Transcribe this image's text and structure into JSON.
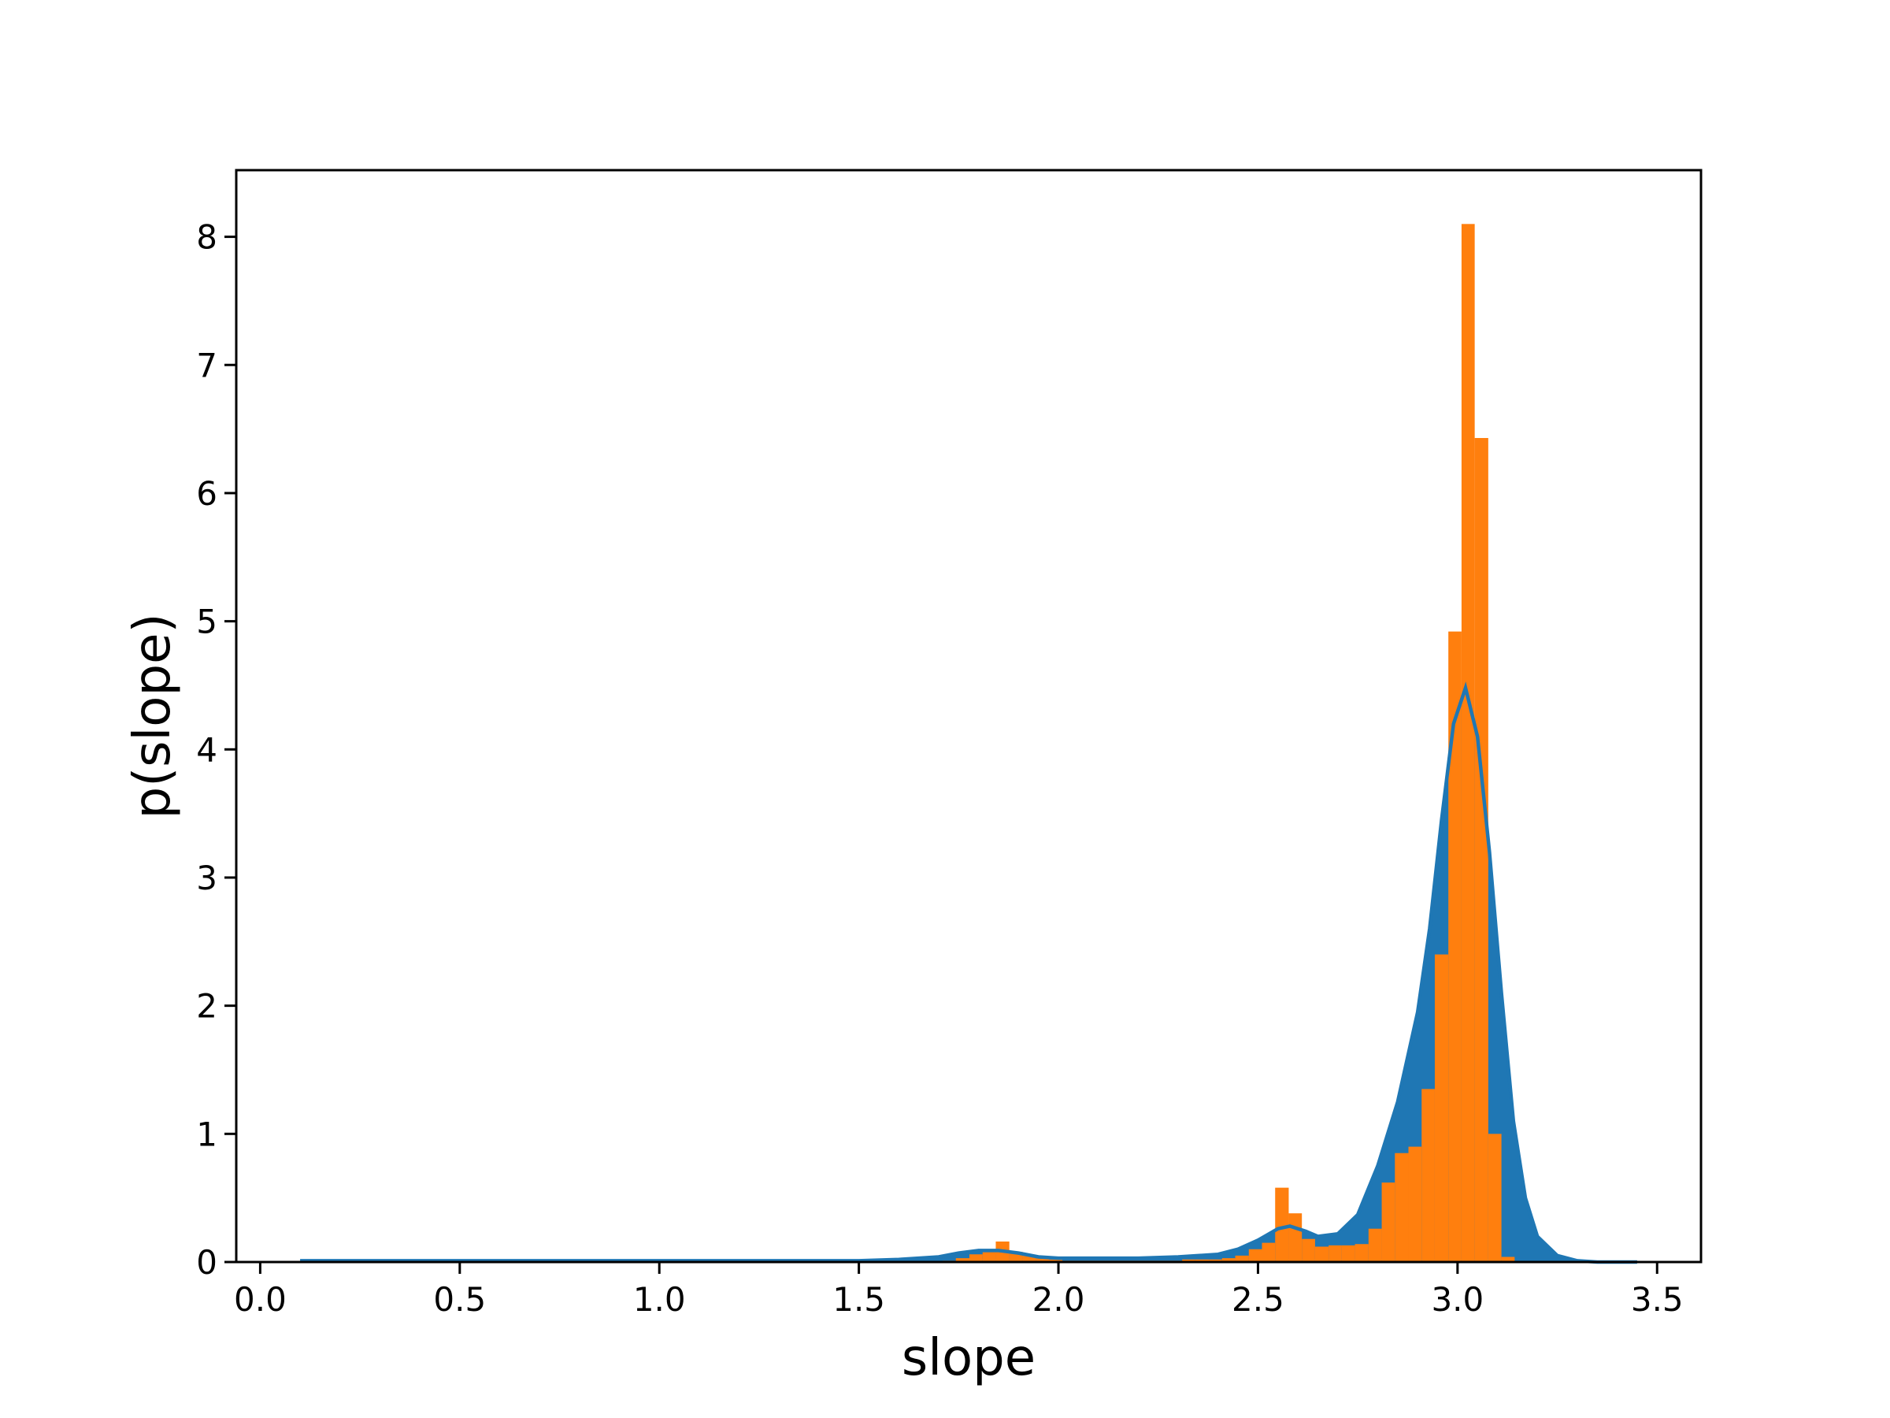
{
  "chart_data": {
    "type": "histogram",
    "x_label": "slope",
    "y_label": "p(slope)",
    "xlim": [
      -0.06,
      3.61
    ],
    "ylim": [
      0,
      8.52
    ],
    "xticks": [
      {
        "value": 0,
        "label": "0.0"
      },
      0.5,
      {
        "value": 1,
        "label": "1.0"
      },
      1.5,
      {
        "value": 2,
        "label": "2.0"
      },
      2.5,
      {
        "value": 3,
        "label": "3.0"
      },
      3.5
    ],
    "yticks": [
      0,
      1,
      2,
      3,
      4,
      5,
      6,
      7,
      8
    ],
    "kde": {
      "color": "#1f77b4",
      "x": [
        0.1,
        0.5,
        1.0,
        1.5,
        1.6,
        1.7,
        1.75,
        1.8,
        1.85,
        1.9,
        1.95,
        2.0,
        2.1,
        2.2,
        2.3,
        2.4,
        2.45,
        2.5,
        2.55,
        2.58,
        2.62,
        2.65,
        2.7,
        2.75,
        2.8,
        2.85,
        2.9,
        2.93,
        2.96,
        2.99,
        3.02,
        3.05,
        3.08,
        3.11,
        3.14,
        3.17,
        3.2,
        3.25,
        3.3,
        3.35,
        3.45
      ],
      "values": [
        0.01,
        0.01,
        0.01,
        0.01,
        0.02,
        0.04,
        0.07,
        0.09,
        0.09,
        0.07,
        0.04,
        0.03,
        0.03,
        0.03,
        0.04,
        0.06,
        0.1,
        0.17,
        0.26,
        0.28,
        0.24,
        0.2,
        0.22,
        0.37,
        0.75,
        1.25,
        1.95,
        2.6,
        3.45,
        4.2,
        4.48,
        4.1,
        3.2,
        2.1,
        1.1,
        0.5,
        0.2,
        0.05,
        0.01,
        0.0,
        0.0
      ]
    },
    "histogram": {
      "color": "#ff7f0e",
      "bins": [
        1.71,
        1.743,
        1.777,
        1.81,
        1.843,
        1.877,
        1.91,
        1.943,
        1.977,
        2.01,
        2.043,
        2.077,
        2.11,
        2.143,
        2.177,
        2.21,
        2.243,
        2.277,
        2.31,
        2.343,
        2.377,
        2.41,
        2.443,
        2.477,
        2.51,
        2.543,
        2.577,
        2.61,
        2.643,
        2.677,
        2.71,
        2.743,
        2.777,
        2.81,
        2.843,
        2.877,
        2.91,
        2.943,
        2.977,
        3.01,
        3.043,
        3.077,
        3.11,
        3.143
      ],
      "counts": [
        0.01,
        0.03,
        0.06,
        0.1,
        0.16,
        0.08,
        0.05,
        0.03,
        0.02,
        0.01,
        0.01,
        0.01,
        0.01,
        0.01,
        0.01,
        0.01,
        0.01,
        0.01,
        0.02,
        0.02,
        0.02,
        0.03,
        0.05,
        0.1,
        0.15,
        0.58,
        0.38,
        0.18,
        0.12,
        0.13,
        0.13,
        0.14,
        0.26,
        0.62,
        0.85,
        0.9,
        1.35,
        2.4,
        4.92,
        8.1,
        6.43,
        1.0,
        0.04
      ]
    }
  }
}
